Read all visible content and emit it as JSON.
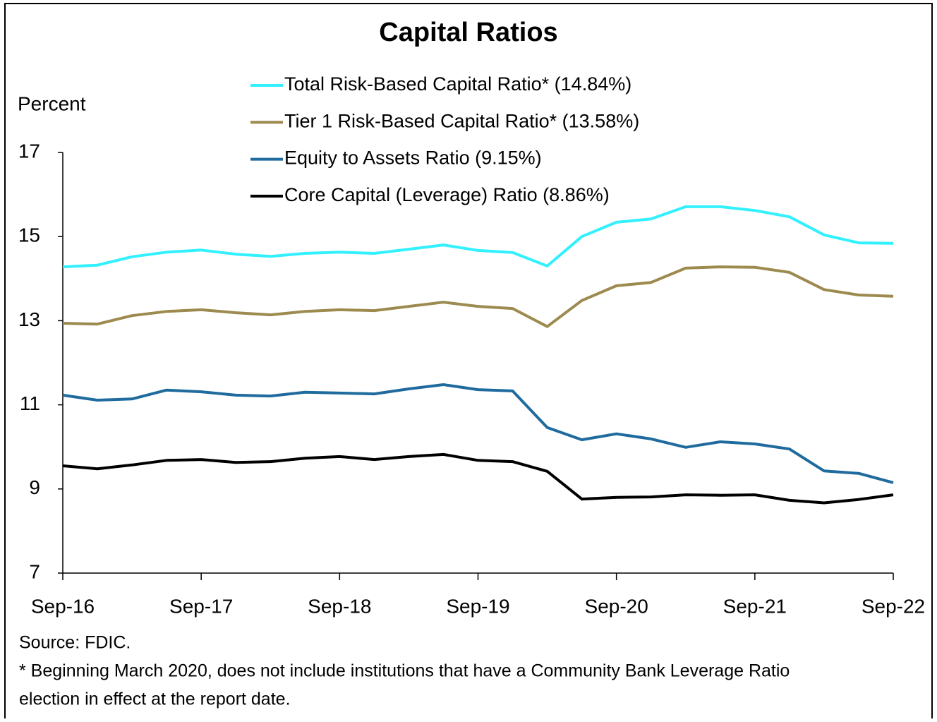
{
  "chart_data": {
    "type": "line",
    "title": "Capital Ratios",
    "y_axis_label": "Percent",
    "categories": [
      "Sep-16",
      null,
      null,
      null,
      "Sep-17",
      null,
      null,
      null,
      "Sep-18",
      null,
      null,
      null,
      "Sep-19",
      null,
      null,
      null,
      "Sep-20",
      null,
      null,
      null,
      "Sep-21",
      null,
      null,
      null,
      "Sep-22"
    ],
    "ylim": [
      7,
      17
    ],
    "yticks": [
      7,
      9,
      11,
      13,
      15,
      17
    ],
    "grid": false,
    "legend": "top",
    "series": [
      {
        "name": "Total Risk-Based Capital Ratio* (14.84%)",
        "color": "#33f0ff",
        "values": [
          14.28,
          14.32,
          14.52,
          14.63,
          14.68,
          14.58,
          14.53,
          14.6,
          14.63,
          14.6,
          14.7,
          14.8,
          14.67,
          14.62,
          14.3,
          15.0,
          15.34,
          15.42,
          15.71,
          15.71,
          15.62,
          15.47,
          15.04,
          14.85,
          14.84
        ]
      },
      {
        "name": "Tier 1 Risk-Based Capital Ratio* (13.58%)",
        "color": "#9c8a4e",
        "values": [
          12.94,
          12.92,
          13.12,
          13.22,
          13.26,
          13.19,
          13.14,
          13.22,
          13.26,
          13.24,
          13.34,
          13.44,
          13.34,
          13.29,
          12.86,
          13.48,
          13.83,
          13.91,
          14.25,
          14.28,
          14.27,
          14.15,
          13.74,
          13.61,
          13.58
        ]
      },
      {
        "name": "Equity to Assets Ratio (9.15%)",
        "color": "#1f6b9e",
        "values": [
          11.23,
          11.11,
          11.14,
          11.35,
          11.31,
          11.23,
          11.21,
          11.3,
          11.28,
          11.26,
          11.38,
          11.48,
          11.36,
          11.33,
          10.46,
          10.17,
          10.31,
          10.19,
          9.99,
          10.12,
          10.07,
          9.95,
          9.43,
          9.37,
          9.15
        ]
      },
      {
        "name": "Core Capital (Leverage) Ratio (8.86%)",
        "color": "#000000",
        "values": [
          9.55,
          9.48,
          9.57,
          9.68,
          9.7,
          9.63,
          9.65,
          9.73,
          9.77,
          9.7,
          9.77,
          9.82,
          9.68,
          9.65,
          9.42,
          8.76,
          8.8,
          8.81,
          8.86,
          8.85,
          8.86,
          8.73,
          8.67,
          8.75,
          8.86
        ]
      }
    ],
    "notes": [
      "Source: FDIC.",
      "* Beginning March 2020, does not include institutions that have a Community Bank Leverage Ratio",
      "election in effect at the report date."
    ]
  }
}
